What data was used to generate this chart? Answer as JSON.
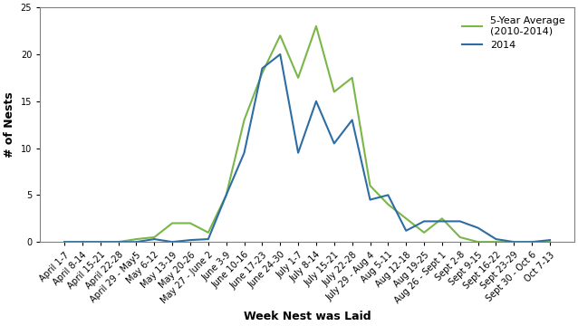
{
  "x_labels": [
    "April 1-7",
    "April 8-14",
    "April 15-21",
    "April 22-28",
    "April 29 - May5",
    "May 6-12",
    "May 13-19",
    "May 20-26",
    "May 27 - June 2",
    "June 3-9",
    "June 10-16",
    "June 17-23",
    "June 24-30",
    "July 1-7",
    "July 8-14",
    "July 15-21",
    "July 22-28",
    "July 29 - Aug 4",
    "Aug 5-11",
    "Aug 12-18",
    "Aug 19-25",
    "Aug 26 - Sept 1",
    "Sept 2-8",
    "Sept 9-15",
    "Sept 16-22",
    "Sept 23-29",
    "Sept 30 - Oct 6",
    "Oct 7-13"
  ],
  "five_year_avg": [
    0,
    0,
    0,
    0,
    0.3,
    0.5,
    2,
    2,
    1,
    5,
    13,
    18,
    22,
    17.5,
    23,
    16,
    17.5,
    6,
    4,
    2.5,
    1,
    2.5,
    0.5,
    0,
    0,
    0,
    0,
    0
  ],
  "year_2014": [
    0,
    0,
    0,
    0,
    0,
    0.3,
    0,
    0.2,
    0.3,
    5,
    9.5,
    18.5,
    20,
    9.5,
    15,
    10.5,
    13,
    4.5,
    5,
    1.2,
    2.2,
    2.2,
    2.2,
    1.5,
    0.3,
    0,
    0,
    0.2
  ],
  "five_year_color": "#7ab648",
  "year_2014_color": "#2e6da4",
  "ylabel": "# of Nests",
  "xlabel": "Week Nest was Laid",
  "ylim": [
    0,
    25
  ],
  "yticks": [
    0,
    5,
    10,
    15,
    20,
    25
  ],
  "legend_labels": [
    "5-Year Average\n(2010-2014)",
    "2014"
  ],
  "legend_loc": "upper right",
  "figsize": [
    6.38,
    3.6
  ],
  "dpi": 100,
  "tick_fontsize": 7,
  "axis_label_fontsize": 9,
  "legend_fontsize": 8
}
